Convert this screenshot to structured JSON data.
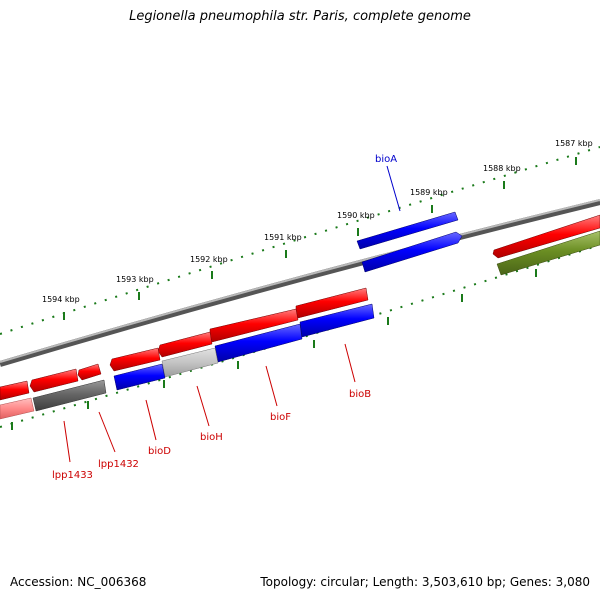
{
  "title": "Legionella pneumophila str. Paris, complete genome",
  "footer": {
    "accession": "Accession: NC_006368",
    "summary": "Topology: circular; Length: 3,503,610 bp; Genes: 3,080"
  },
  "colors": {
    "forward_gene": "#ff0000",
    "reverse_gene": "#0000ff",
    "pseudo_gene": "#666666",
    "other_feature": "#6b8e23",
    "tick_color": "#1a7a1a",
    "backbone": "#7a7a7a"
  },
  "ruler": {
    "tick_labels": [
      {
        "id": "1587",
        "text": "1587 kbp"
      },
      {
        "id": "1588",
        "text": "1588 kbp"
      },
      {
        "id": "1589",
        "text": "1589 kbp"
      },
      {
        "id": "1590",
        "text": "1590 kbp"
      },
      {
        "id": "1591",
        "text": "1591 kbp"
      },
      {
        "id": "1592",
        "text": "1592 kbp"
      },
      {
        "id": "1593",
        "text": "1593 kbp"
      },
      {
        "id": "1594",
        "text": "1594 kbp"
      }
    ]
  },
  "gene_labels": [
    {
      "id": "bioA",
      "text": "bioA",
      "strand": "reverse"
    },
    {
      "id": "bioB",
      "text": "bioB",
      "strand": "forward"
    },
    {
      "id": "bioF",
      "text": "bioF",
      "strand": "forward"
    },
    {
      "id": "bioH",
      "text": "bioH",
      "strand": "forward"
    },
    {
      "id": "bioD",
      "text": "bioD",
      "strand": "forward"
    },
    {
      "id": "lpp1432",
      "text": "lpp1432",
      "strand": "forward"
    },
    {
      "id": "lpp1433",
      "text": "lpp1433",
      "strand": "forward"
    }
  ]
}
